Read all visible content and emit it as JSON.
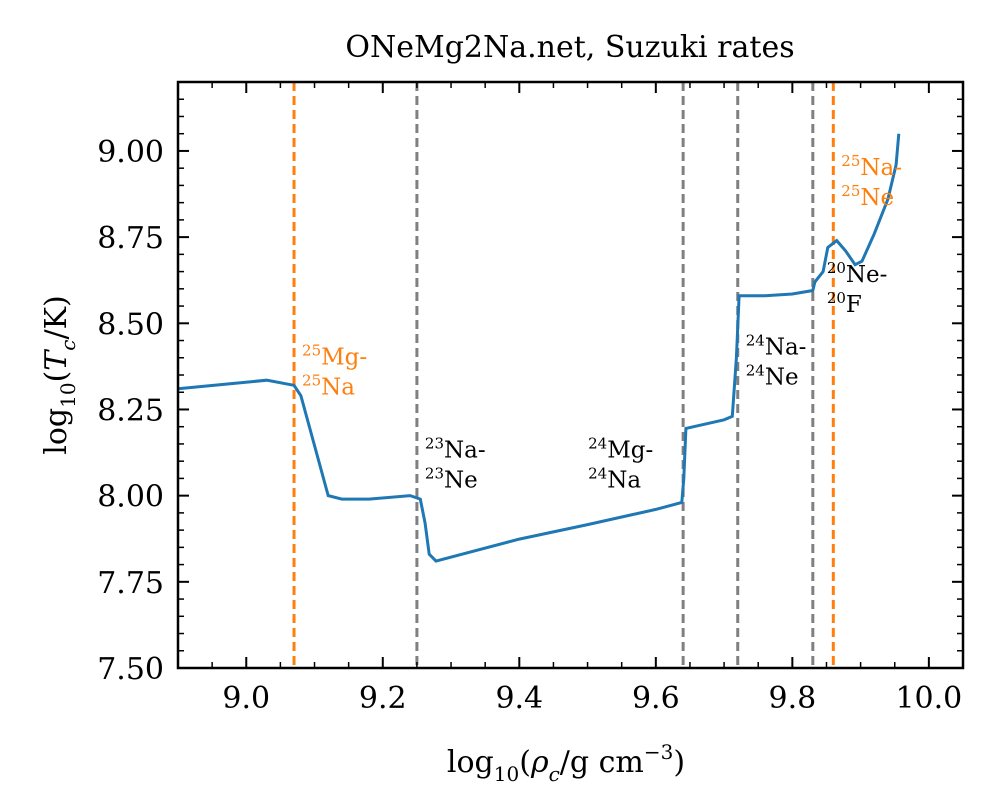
{
  "chart_data": {
    "type": "line",
    "title": "ONeMg2Na.net, Suzuki rates",
    "xlabel": "log10(ρc/g cm−3)",
    "ylabel": "log10(Tc/K)",
    "xlim": [
      8.9,
      10.05
    ],
    "ylim": [
      7.5,
      9.2
    ],
    "x_ticks": [
      9.0,
      9.2,
      9.4,
      9.6,
      9.8,
      10.0
    ],
    "x_tick_labels": [
      "9.0",
      "9.2",
      "9.4",
      "9.6",
      "9.8",
      "10.0"
    ],
    "y_ticks": [
      7.5,
      7.75,
      8.0,
      8.25,
      8.5,
      8.75,
      9.0
    ],
    "y_tick_labels": [
      "7.50",
      "7.75",
      "8.00",
      "8.25",
      "8.50",
      "8.75",
      "9.00"
    ],
    "series": [
      {
        "color": "#1f77b4",
        "x": [
          8.9,
          9.03,
          9.07,
          9.08,
          9.12,
          9.14,
          9.18,
          9.24,
          9.255,
          9.262,
          9.268,
          9.278,
          9.4,
          9.5,
          9.6,
          9.638,
          9.641,
          9.644,
          9.7,
          9.712,
          9.718,
          9.722,
          9.76,
          9.8,
          9.83,
          9.833,
          9.845,
          9.852,
          9.865,
          9.878,
          9.892,
          9.902,
          9.92,
          9.94,
          9.952,
          9.956
        ],
        "y": [
          8.31,
          8.335,
          8.32,
          8.29,
          8.0,
          7.99,
          7.99,
          8.0,
          7.99,
          7.92,
          7.83,
          7.81,
          7.874,
          7.916,
          7.96,
          7.98,
          8.05,
          8.195,
          8.22,
          8.23,
          8.4,
          8.58,
          8.58,
          8.585,
          8.595,
          8.62,
          8.65,
          8.72,
          8.74,
          8.71,
          8.67,
          8.68,
          8.76,
          8.86,
          8.96,
          9.05
        ]
      }
    ],
    "vlines": [
      {
        "x": 9.07,
        "color": "#ff7f0e",
        "label_top": "Mg-",
        "label_top_mass": "25",
        "label_bot": "Na",
        "label_bot_mass": "25",
        "label_y": 8.38
      },
      {
        "x": 9.25,
        "color": "#808080",
        "label_top": "Na-",
        "label_top_mass": "23",
        "label_bot": "Ne",
        "label_bot_mass": "23",
        "label_y": 8.11
      },
      {
        "x": 9.64,
        "color": "#808080",
        "label_top": "Mg-",
        "label_top_mass": "24",
        "label_bot": "Na",
        "label_bot_mass": "24",
        "label_y": 8.11
      },
      {
        "x": 9.72,
        "color": "#808080",
        "label_top": "Na-",
        "label_top_mass": "24",
        "label_bot": "Ne",
        "label_bot_mass": "24",
        "label_y": 8.41
      },
      {
        "x": 9.83,
        "color": "#808080",
        "label_top": "Ne-",
        "label_top_mass": "20",
        "label_bot": "F",
        "label_bot_mass": "20",
        "label_y": 8.62
      },
      {
        "x": 9.86,
        "color": "#ff7f0e",
        "label_top": "Na-",
        "label_top_mass": "25",
        "label_bot": "Ne",
        "label_bot_mass": "25",
        "label_y": 8.93
      }
    ],
    "grid": false,
    "legend": "none"
  }
}
